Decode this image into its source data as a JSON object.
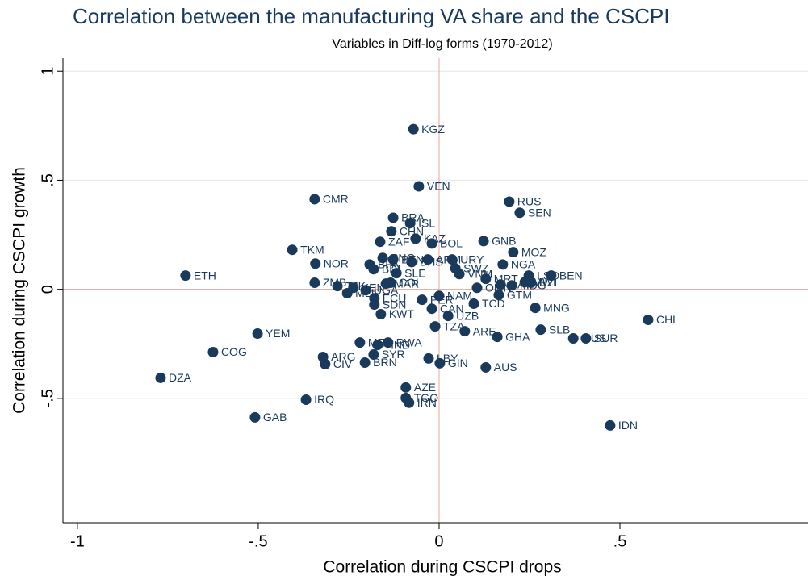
{
  "chart_data": {
    "type": "scatter",
    "title": "Correlation between the manufacturing VA share and the CSCPI",
    "subtitle": "Variables in Diff-log forms (1970-2012)",
    "x_label": "Correlation during CSCPI drops",
    "y_label": "Correlation during CSCPI growth",
    "color": "#1a3a5c",
    "refline_color": "#e8a99a",
    "grid": true,
    "xlim": [
      -1.04,
      1.02
    ],
    "ylim": [
      -1.07,
      1.06
    ],
    "xticks": [
      -1,
      {
        "value": -0.5,
        "label": "-.5"
      },
      0,
      {
        "value": 0.5,
        "label": ".5"
      }
    ],
    "yticks": [
      {
        "value": -0.5,
        "label": "-.5"
      },
      0,
      {
        "value": 0.5,
        "label": ".5"
      },
      1
    ],
    "xref": 0,
    "yref": 0,
    "labels": [
      "KGZ",
      "VEN",
      "CMR",
      "RUS",
      "SEN",
      "BRA",
      "ISL",
      "CHN",
      "KAZ",
      "ZAF",
      "BOL",
      "GNB",
      "MOZ",
      "TKM",
      "NOR",
      "PNG",
      "BHS",
      "BTN",
      "ARM",
      "URY",
      "SWZ",
      "NGA",
      "BFA",
      "BDI",
      "SLE",
      "VNM",
      "MRT",
      "LSO",
      "BEN",
      "ETH",
      "ZMB",
      "TJK",
      "KEN",
      "MLI",
      "UGA",
      "MAR",
      "COL",
      "OMN",
      "QAT",
      "MDG",
      "MWI",
      "NZL",
      "GTM",
      "NAM",
      "ECU",
      "SDN",
      "PER",
      "TCD",
      "KWT",
      "CAN",
      "UZB",
      "MNG",
      "CHL",
      "TZA",
      "ARE",
      "GHA",
      "SLB",
      "MUS",
      "SUR",
      "YEM",
      "MEX",
      "RWA",
      "HND",
      "COG",
      "SYR",
      "ARG",
      "CIV",
      "BRN",
      "LBY",
      "GIN",
      "AUS",
      "DZA",
      "AZE",
      "IRQ",
      "TGO",
      "IRN",
      "GAB",
      "IDN"
    ],
    "x": [
      -0.071,
      -0.056,
      -0.344,
      0.194,
      0.223,
      -0.127,
      -0.08,
      -0.132,
      -0.065,
      -0.163,
      -0.02,
      0.123,
      0.205,
      -0.406,
      -0.342,
      -0.156,
      -0.076,
      -0.127,
      -0.031,
      0.036,
      0.045,
      0.176,
      -0.192,
      -0.181,
      -0.118,
      0.056,
      0.129,
      0.248,
      0.31,
      -0.701,
      -0.344,
      -0.281,
      -0.237,
      -0.254,
      -0.203,
      -0.147,
      -0.134,
      0.105,
      0.17,
      0.201,
      0.237,
      0.254,
      0.165,
      0,
      -0.179,
      -0.179,
      -0.047,
      0.096,
      -0.161,
      -0.02,
      0.025,
      0.266,
      0.578,
      -0.011,
      0.071,
      0.161,
      0.281,
      0.371,
      0.406,
      -0.502,
      -0.219,
      -0.141,
      -0.17,
      -0.625,
      -0.181,
      -0.321,
      -0.315,
      -0.205,
      -0.029,
      0.002,
      0.129,
      -0.77,
      -0.092,
      -0.368,
      -0.092,
      -0.083,
      -0.509,
      0.473
    ],
    "values": [
      0.734,
      0.472,
      0.413,
      0.402,
      0.351,
      0.328,
      0.303,
      0.266,
      0.232,
      0.218,
      0.21,
      0.221,
      0.17,
      0.181,
      0.118,
      0.144,
      0.125,
      0.137,
      0.137,
      0.137,
      0.096,
      0.114,
      0.114,
      0.092,
      0.074,
      0.07,
      0.048,
      0.063,
      0.063,
      0.063,
      0.03,
      0.015,
      0.007,
      -0.018,
      -0.004,
      0.026,
      0.03,
      0.007,
      0.022,
      0.018,
      0.033,
      0.03,
      -0.026,
      -0.03,
      -0.041,
      -0.07,
      -0.048,
      -0.066,
      -0.114,
      -0.089,
      -0.122,
      -0.085,
      -0.14,
      -0.17,
      -0.192,
      -0.218,
      -0.185,
      -0.225,
      -0.225,
      -0.203,
      -0.244,
      -0.244,
      -0.255,
      -0.288,
      -0.299,
      -0.31,
      -0.343,
      -0.336,
      -0.317,
      -0.339,
      -0.358,
      -0.406,
      -0.45,
      -0.506,
      -0.498,
      -0.52,
      -0.587,
      -0.624
    ]
  }
}
